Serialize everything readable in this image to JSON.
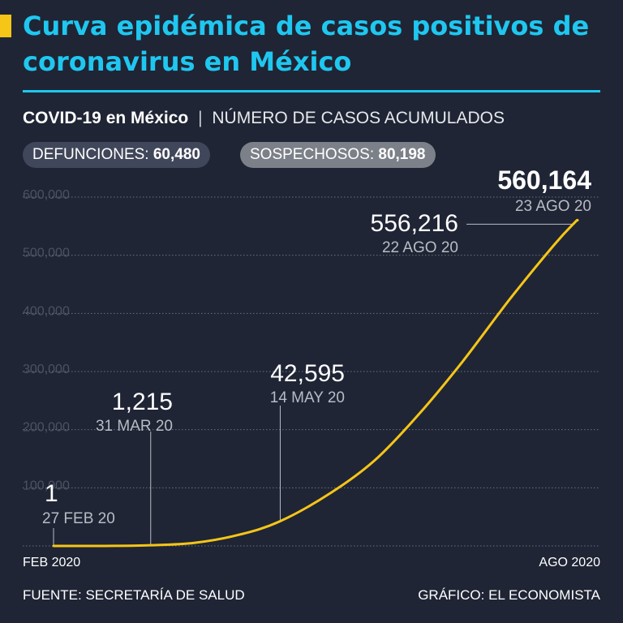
{
  "header": {
    "title": "Curva epidémica de casos positivos de coronavirus en México",
    "subtitle_bold": "COVID-19 en México",
    "subtitle_separator": "|",
    "subtitle_light": "NÚMERO DE CASOS ACUMULADOS"
  },
  "stats": {
    "deaths_label": "DEFUNCIONES:",
    "deaths_value": "60,480",
    "suspects_label": "SOSPECHOSOS:",
    "suspects_value": "80,198"
  },
  "footer": {
    "source": "FUENTE: SECRETARÍA DE SALUD",
    "credit": "GRÁFICO: EL ECONOMISTA"
  },
  "colors": {
    "background": "#1f2535",
    "title": "#1fc7f0",
    "line": "#f5c518",
    "grid": "#6b7080"
  },
  "chart_data": {
    "type": "line",
    "title": "",
    "xlabel": "",
    "ylabel": "",
    "ylim": [
      0,
      600000
    ],
    "yticks": [
      100000,
      200000,
      300000,
      400000,
      500000,
      600000
    ],
    "ytick_labels": [
      "100,000",
      "200,000",
      "300,000",
      "400,000",
      "500,000",
      "600,000"
    ],
    "xlim": [
      "2020-02-27",
      "2020-08-23"
    ],
    "x_axis_labels": [
      "FEB 2020",
      "AGO 2020"
    ],
    "grid": true,
    "series": [
      {
        "x": [
          "2020-02-27",
          "2020-03-15",
          "2020-03-31",
          "2020-04-15",
          "2020-04-30",
          "2020-05-14",
          "2020-05-31",
          "2020-06-15",
          "2020-06-30",
          "2020-07-15",
          "2020-07-31",
          "2020-08-15",
          "2020-08-22",
          "2020-08-23"
        ],
        "y": [
          1,
          41,
          1215,
          5399,
          19224,
          42595,
          90664,
          146837,
          226089,
          317635,
          424637,
          517714,
          556216,
          560164
        ]
      }
    ],
    "annotations": [
      {
        "date": "2020-02-27",
        "value": 1,
        "value_label": "1",
        "date_label": "27 FEB 20"
      },
      {
        "date": "2020-03-31",
        "value": 1215,
        "value_label": "1,215",
        "date_label": "31 MAR 20"
      },
      {
        "date": "2020-05-14",
        "value": 42595,
        "value_label": "42,595",
        "date_label": "14 MAY 20"
      },
      {
        "date": "2020-08-22",
        "value": 556216,
        "value_label": "556,216",
        "date_label": "22 AGO 20"
      },
      {
        "date": "2020-08-23",
        "value": 560164,
        "value_label": "560,164",
        "date_label": "23 AGO 20"
      }
    ]
  }
}
